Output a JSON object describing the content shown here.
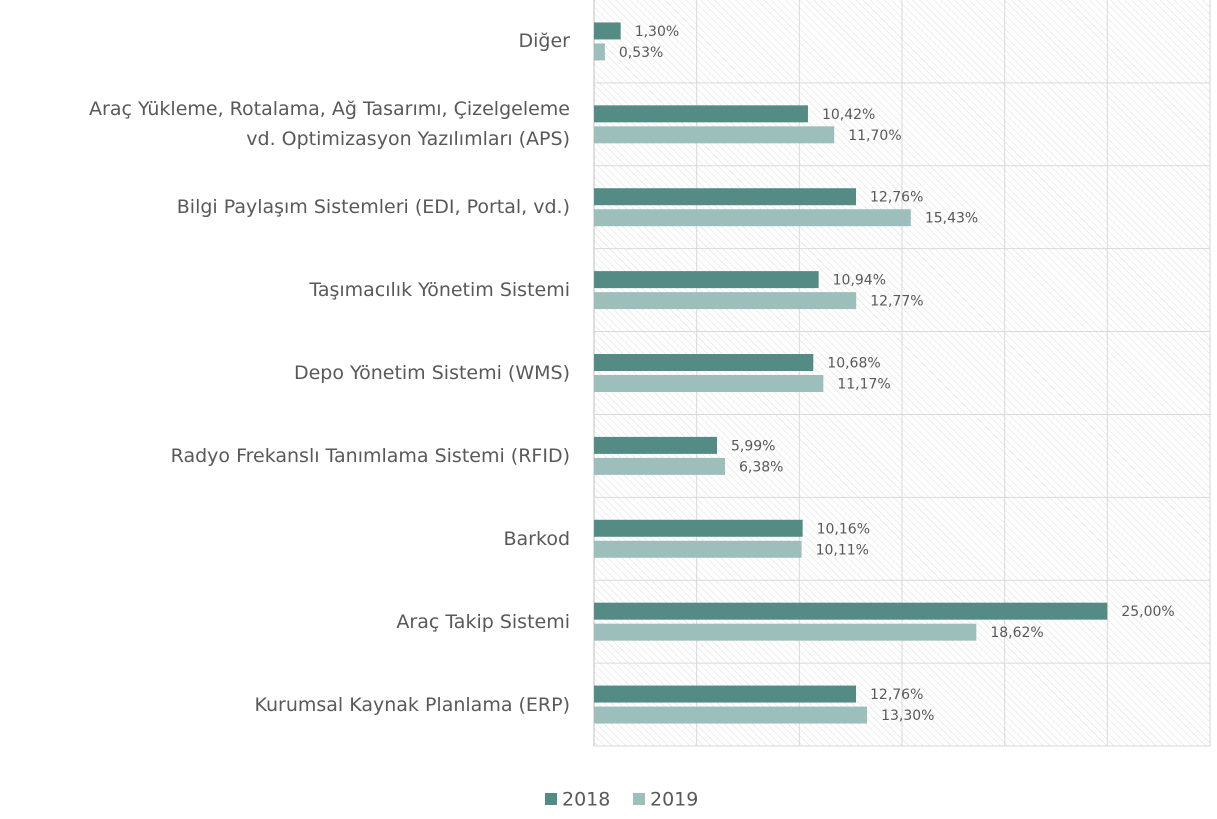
{
  "chart_data": {
    "type": "hbar",
    "categories": [
      "Diğer",
      "Araç Yükleme, Rotalama, Ağ Tasarımı, Çizelgeleme\nvd. Optimizasyon Yazılımları (APS)",
      "Bilgi Paylaşım Sistemleri (EDI, Portal, vd.)",
      "Taşımacılık Yönetim Sistemi",
      "Depo Yönetim Sistemi (WMS)",
      "Radyo Frekanslı Tanımlama Sistemi (RFID)",
      "Barkod",
      "Araç Takip Sistemi",
      "Kurumsal Kaynak Planlama (ERP)"
    ],
    "series": [
      {
        "name": "2018",
        "color": "#548b84",
        "values": [
          1.3,
          10.42,
          12.76,
          10.94,
          10.68,
          5.99,
          10.16,
          25.0,
          12.76
        ],
        "value_labels": [
          "1,30%",
          "10,42%",
          "12,76%",
          "10,94%",
          "10,68%",
          "5,99%",
          "10,16%",
          "25,00%",
          "12,76%"
        ]
      },
      {
        "name": "2019",
        "color": "#9dbfbb",
        "values": [
          0.53,
          11.7,
          15.43,
          12.77,
          11.17,
          6.38,
          10.11,
          18.62,
          13.3
        ],
        "value_labels": [
          "0,53%",
          "11,70%",
          "15,43%",
          "12,77%",
          "11,17%",
          "6,38%",
          "10,11%",
          "18,62%",
          "13,30%"
        ]
      }
    ],
    "xlim": [
      0,
      30
    ],
    "xticks": [
      0,
      5,
      10,
      15,
      20,
      25,
      30
    ],
    "grid": true,
    "legend": "bottom"
  }
}
